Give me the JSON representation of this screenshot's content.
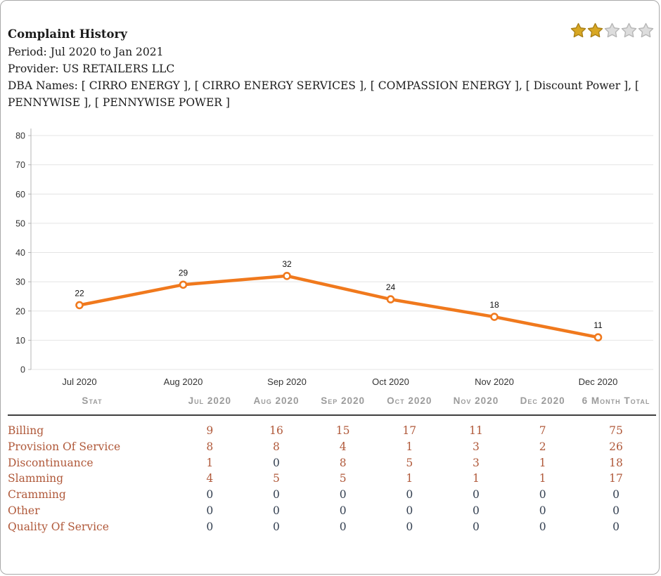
{
  "header": {
    "title": "Complaint History",
    "period_label": "Period:",
    "period_value": "Jul 2020 to Jan 2021",
    "provider_label": "Provider:",
    "provider_value": "US RETAILERS LLC",
    "dba_label": "DBA Names:",
    "dba_value": "[ CIRRO ENERGY ], [ CIRRO ENERGY SERVICES ], [ COMPASSION ENERGY ], [ Discount Power ], [ PENNYWISE ], [ PENNYWISE POWER ]"
  },
  "rating": {
    "stars_total": 5,
    "stars_filled": 2,
    "gold_color": "#d8a723",
    "gold_stroke": "#a87f16",
    "silver_color": "#dddddd",
    "silver_stroke": "#b5b5b5"
  },
  "chart_data": {
    "type": "line",
    "title": "",
    "xlabel": "",
    "ylabel": "",
    "x": [
      "Jul 2020",
      "Aug 2020",
      "Sep 2020",
      "Oct 2020",
      "Nov 2020",
      "Dec 2020"
    ],
    "values": [
      22,
      29,
      32,
      24,
      18,
      11
    ],
    "ylim": [
      0,
      80
    ],
    "ytick_step": 10,
    "grid": true,
    "legend": "none",
    "line_color": "#f0791d",
    "marker": "open-circle",
    "grid_color": "#e4e4e4",
    "axis_color": "#b4b4b4"
  },
  "table": {
    "columns": [
      "Stat",
      "Jul 2020",
      "Aug 2020",
      "Sep 2020",
      "Oct 2020",
      "Nov 2020",
      "Dec 2020",
      "6 Month Total"
    ],
    "rows": [
      {
        "label": "Billing",
        "values": [
          9,
          16,
          15,
          17,
          11,
          7,
          75
        ]
      },
      {
        "label": "Provision Of Service",
        "values": [
          8,
          8,
          4,
          1,
          3,
          2,
          26
        ]
      },
      {
        "label": "Discontinuance",
        "values": [
          1,
          0,
          8,
          5,
          3,
          1,
          18
        ]
      },
      {
        "label": "Slamming",
        "values": [
          4,
          5,
          5,
          1,
          1,
          1,
          17
        ]
      },
      {
        "label": "Cramming",
        "values": [
          0,
          0,
          0,
          0,
          0,
          0,
          0
        ]
      },
      {
        "label": "Other",
        "values": [
          0,
          0,
          0,
          0,
          0,
          0,
          0
        ]
      },
      {
        "label": "Quality Of Service",
        "values": [
          0,
          0,
          0,
          0,
          0,
          0,
          0
        ]
      }
    ],
    "label_color": "#b0593a",
    "value_color": "#b0593a",
    "zero_color": "#333f50"
  }
}
